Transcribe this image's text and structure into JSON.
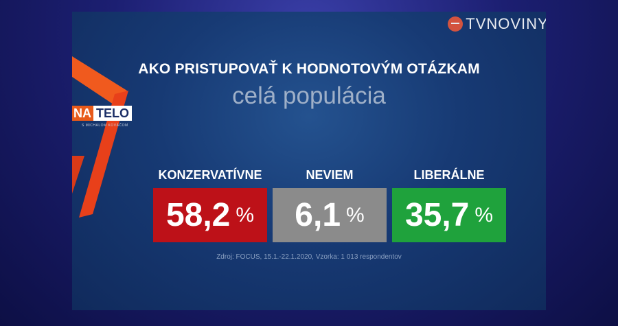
{
  "brand": {
    "name": "TVNOVINY."
  },
  "show": {
    "badge_left": "NA",
    "badge_right": "TELO",
    "badge_sub": "S MICHALOM KOVÁČOM"
  },
  "chart_data": {
    "type": "table",
    "title": "AKO PRISTUPOVAŤ K HODNOTOVÝM OTÁZKAM",
    "subtitle": "celá populácia",
    "categories": [
      "KONZERVATÍVNE",
      "NEVIEM",
      "LIBERÁLNE"
    ],
    "values": [
      58.2,
      6.1,
      35.7
    ],
    "value_labels": [
      "58,2",
      "6,1",
      "35,7"
    ],
    "unit": "%",
    "colors": [
      "#bd1118",
      "#8b8b8b",
      "#1fa23c"
    ],
    "source": "Zdroj: FOCUS, 15.1.-22.1.2020, Vzorka: 1 013 respondentov"
  }
}
